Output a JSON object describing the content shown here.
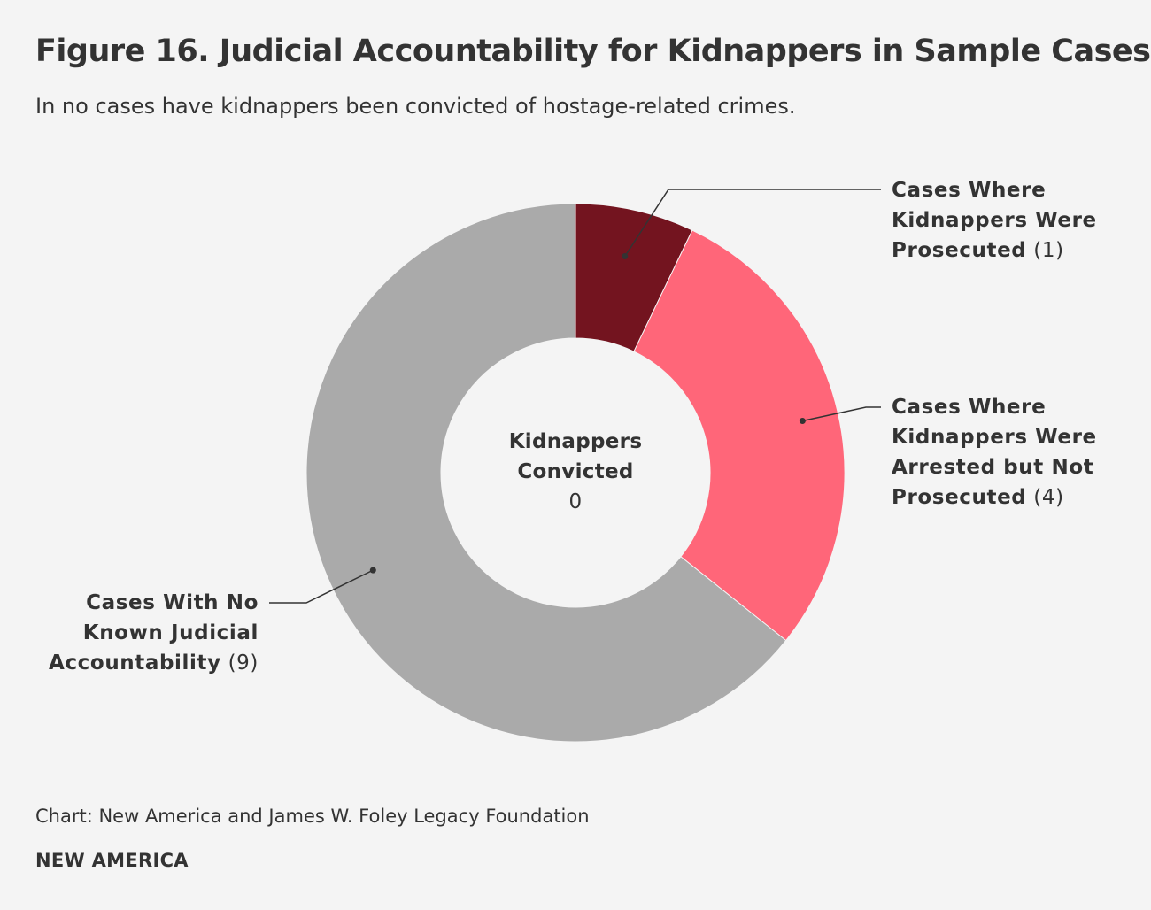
{
  "title": "Figure 16. Judicial Accountability for Kidnappers in Sample Cases",
  "subtitle": "In no cases have kidnappers been convicted of hostage-related crimes.",
  "chart_data": {
    "type": "pie",
    "variant": "donut",
    "slices": [
      {
        "name": "Cases Where Kidnappers Were Prosecuted",
        "value": 1,
        "count_label": "(1)",
        "color": "#73141f"
      },
      {
        "name": "Cases Where Kidnappers Were Arrested but Not Prosecuted",
        "value": 4,
        "count_label": "(4)",
        "color": "#ff6679"
      },
      {
        "name": "Cases With No Known Judicial Accountability",
        "value": 9,
        "count_label": "(9)",
        "color": "#aaaaaa"
      }
    ],
    "center": {
      "label": "Kidnappers Convicted",
      "value": "0"
    },
    "start_angle": "12 o'clock",
    "direction": "clockwise"
  },
  "source": "Chart: New America and James W. Foley Legacy Foundation",
  "brand": "NEW AMERICA",
  "colors": {
    "background": "#f4f4f4",
    "text": "#333333",
    "leader_line": "#333333"
  }
}
